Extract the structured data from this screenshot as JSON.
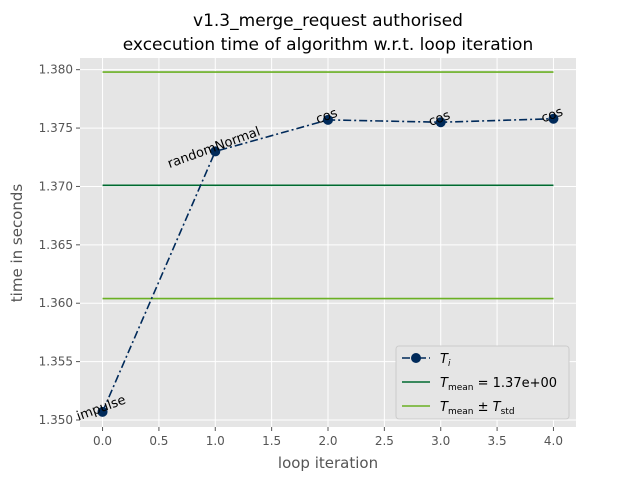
{
  "chart_data": {
    "type": "line",
    "title_line1": "v1.3_merge_request authorised",
    "title_line2": "excecution time of algorithm w.r.t. loop iteration",
    "xlabel": "loop iteration",
    "ylabel": "time in seconds",
    "xlim": [
      -0.2,
      4.2
    ],
    "ylim": [
      1.3494,
      1.381
    ],
    "xticks": [
      0.0,
      0.5,
      1.0,
      1.5,
      2.0,
      2.5,
      3.0,
      3.5,
      4.0
    ],
    "xtick_labels": [
      "0.0",
      "0.5",
      "1.0",
      "1.5",
      "2.0",
      "2.5",
      "3.0",
      "3.5",
      "4.0"
    ],
    "yticks": [
      1.35,
      1.355,
      1.36,
      1.365,
      1.37,
      1.375,
      1.38
    ],
    "ytick_labels": [
      "1.350",
      "1.355",
      "1.360",
      "1.365",
      "1.370",
      "1.375",
      "1.380"
    ],
    "grid": true,
    "legend_position": "lower-right",
    "series": [
      {
        "name": "T_i",
        "x": [
          0,
          1,
          2,
          3,
          4
        ],
        "y": [
          1.3507,
          1.373,
          1.3757,
          1.3755,
          1.3758
        ],
        "annotations": [
          "impulse",
          "randomNormal",
          "cos",
          "cos",
          "cos"
        ],
        "color": "#002a5a"
      }
    ],
    "mean": 1.3701,
    "mean_label": "1.37e+00",
    "std_upper": 1.3798,
    "std_lower": 1.3604,
    "mean_color": "#006a30",
    "std_color": "#6ab023"
  },
  "colors": {
    "plot_background": "#e5e5e5",
    "grid": "#ffffff"
  }
}
